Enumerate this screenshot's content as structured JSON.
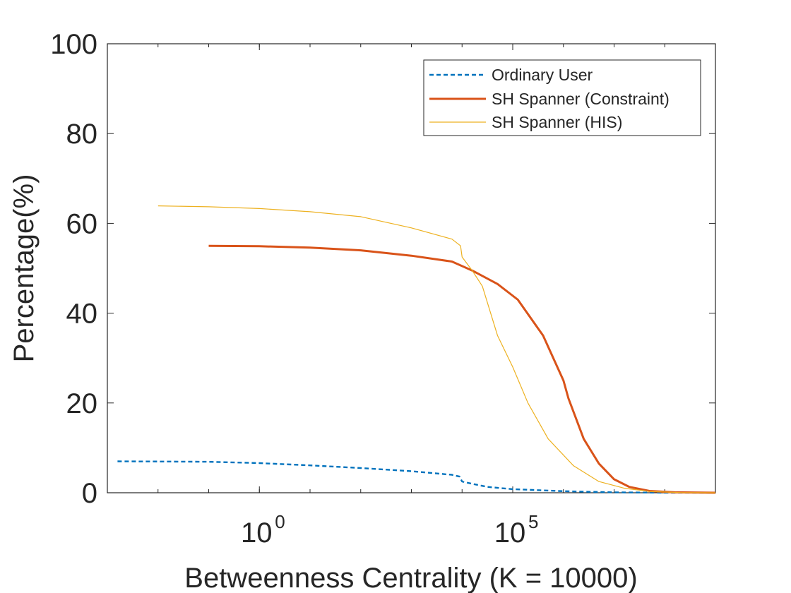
{
  "chart_data": {
    "type": "line",
    "xlabel": "Betweenness Centrality (K = 10000)",
    "ylabel": "Percentage(%)",
    "x_scale": "log",
    "xlim_log10": [
      -3,
      9
    ],
    "ylim": [
      0,
      100
    ],
    "y_ticks": [
      0,
      20,
      40,
      60,
      80,
      100
    ],
    "x_ticks": [
      {
        "base": "10",
        "exp": "0",
        "log10": 0
      },
      {
        "base": "10",
        "exp": "5",
        "log10": 5
      }
    ],
    "grid": false,
    "legend_position": "top-right",
    "series": [
      {
        "name": "Ordinary User",
        "color": "#0072BD",
        "style": "dashed",
        "points_log10x": [
          [
            -2.8,
            7.0
          ],
          [
            -1,
            6.9
          ],
          [
            0,
            6.6
          ],
          [
            1,
            6.1
          ],
          [
            2,
            5.5
          ],
          [
            3,
            4.8
          ],
          [
            3.8,
            4.0
          ],
          [
            3.95,
            3.6
          ],
          [
            4.0,
            2.5
          ],
          [
            4.2,
            2.0
          ],
          [
            4.5,
            1.3
          ],
          [
            5,
            0.8
          ],
          [
            6,
            0.35
          ],
          [
            7,
            0.1
          ],
          [
            8,
            0.02
          ],
          [
            9,
            0
          ]
        ]
      },
      {
        "name": "SH Spanner (Constraint)",
        "color": "#D95319",
        "style": "solid",
        "points_log10x": [
          [
            -1.0,
            55.0
          ],
          [
            0,
            54.9
          ],
          [
            1,
            54.6
          ],
          [
            2,
            54.0
          ],
          [
            3,
            52.8
          ],
          [
            3.8,
            51.5
          ],
          [
            4.2,
            49.5
          ],
          [
            4.7,
            46.5
          ],
          [
            5.1,
            43.0
          ],
          [
            5.6,
            35.0
          ],
          [
            6.0,
            25.0
          ],
          [
            6.1,
            21.0
          ],
          [
            6.4,
            12.0
          ],
          [
            6.7,
            6.5
          ],
          [
            7.0,
            3.0
          ],
          [
            7.3,
            1.3
          ],
          [
            7.7,
            0.4
          ],
          [
            8.2,
            0.1
          ],
          [
            9,
            0
          ]
        ]
      },
      {
        "name": "SH Spanner (HIS)",
        "color": "#EDB120",
        "style": "solid",
        "points_log10x": [
          [
            -2.0,
            63.9
          ],
          [
            -1,
            63.7
          ],
          [
            0,
            63.3
          ],
          [
            1,
            62.6
          ],
          [
            2,
            61.5
          ],
          [
            3,
            59.0
          ],
          [
            3.8,
            56.5
          ],
          [
            3.97,
            55.0
          ],
          [
            4.0,
            52.5
          ],
          [
            4.2,
            49.5
          ],
          [
            4.4,
            46.0
          ],
          [
            4.7,
            35.0
          ],
          [
            5.0,
            28.0
          ],
          [
            5.3,
            20.0
          ],
          [
            5.7,
            12.0
          ],
          [
            6.2,
            6.0
          ],
          [
            6.7,
            2.5
          ],
          [
            7.2,
            1.0
          ],
          [
            7.7,
            0.3
          ],
          [
            8.3,
            0.05
          ],
          [
            9,
            0
          ]
        ]
      }
    ]
  }
}
